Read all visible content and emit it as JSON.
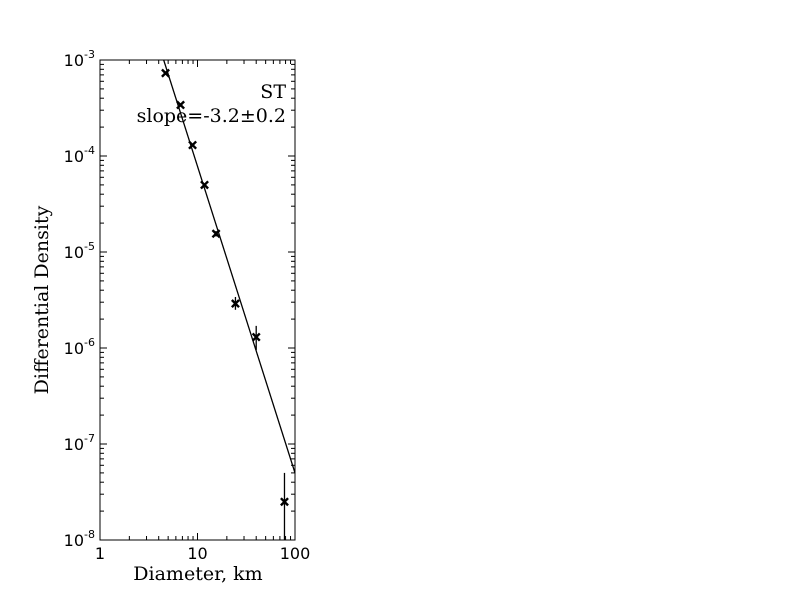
{
  "chart_data": {
    "type": "scatter",
    "xlabel": "Diameter, km",
    "ylabel": "Differential Density",
    "xscale": "log",
    "yscale": "log",
    "xlim": [
      1,
      100
    ],
    "ylim": [
      1e-08,
      0.001
    ],
    "x_ticks": [
      {
        "value": 1,
        "base": "1",
        "exp": ""
      },
      {
        "value": 10,
        "base": "10",
        "exp": ""
      },
      {
        "value": 100,
        "base": "100",
        "exp": ""
      }
    ],
    "y_ticks": [
      {
        "value": 1e-08,
        "base": "10",
        "exp": "-8"
      },
      {
        "value": 1e-07,
        "base": "10",
        "exp": "-7"
      },
      {
        "value": 1e-06,
        "base": "10",
        "exp": "-6"
      },
      {
        "value": 1e-05,
        "base": "10",
        "exp": "-5"
      },
      {
        "value": 0.0001,
        "base": "10",
        "exp": "-4"
      },
      {
        "value": 0.001,
        "base": "10",
        "exp": "-3"
      }
    ],
    "points": [
      {
        "x": 4.7,
        "y": 0.00073,
        "y_low": 0.00073,
        "y_high": 0.00073
      },
      {
        "x": 6.7,
        "y": 0.00034,
        "y_low": 0.00034,
        "y_high": 0.00034
      },
      {
        "x": 8.9,
        "y": 0.00013,
        "y_low": 0.000128,
        "y_high": 0.000132
      },
      {
        "x": 11.8,
        "y": 5e-05,
        "y_low": 4.85e-05,
        "y_high": 5.15e-05
      },
      {
        "x": 15.5,
        "y": 1.55e-05,
        "y_low": 1.45e-05,
        "y_high": 1.65e-05
      },
      {
        "x": 24.5,
        "y": 2.9e-06,
        "y_low": 2.5e-06,
        "y_high": 3.4e-06
      },
      {
        "x": 40,
        "y": 1.3e-06,
        "y_low": 9.5e-07,
        "y_high": 1.7e-06
      },
      {
        "x": 78,
        "y": 2.5e-08,
        "y_low": 1e-08,
        "y_high": 5e-08
      }
    ],
    "fit_line": {
      "x": [
        4.5,
        100
      ],
      "y": [
        0.001,
        5e-08
      ],
      "slope": -3.2
    },
    "annotations": [
      "ST",
      "slope=-3.2±0.2"
    ],
    "grid": false,
    "legend": "none"
  },
  "colors": {
    "marker": "#000000",
    "line": "#000000",
    "axes": "#000000"
  }
}
